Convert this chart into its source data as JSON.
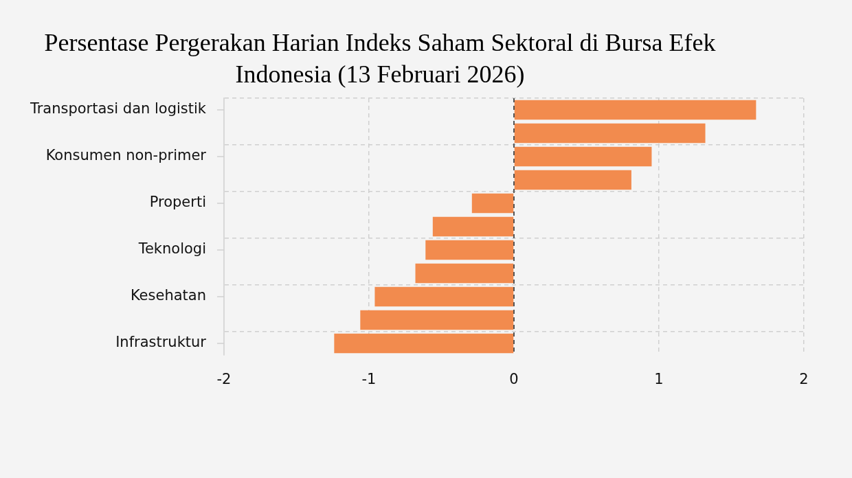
{
  "chart_data": {
    "type": "bar",
    "orientation": "horizontal",
    "title": "Persentase Pergerakan Harian Indeks Saham Sektoral di Bursa Efek Indonesia (13 Februari 2026)",
    "categories": [
      "Transportasi dan logistik",
      null,
      "Konsumen non-primer",
      null,
      "Properti",
      null,
      "Teknologi",
      null,
      "Kesehatan",
      null,
      "Infrastruktur"
    ],
    "values": [
      1.67,
      1.32,
      0.95,
      0.81,
      -0.29,
      -0.56,
      -0.61,
      -0.68,
      -0.96,
      -1.06,
      -1.24
    ],
    "color": "#f28b4e",
    "xlim": [
      -2,
      2
    ],
    "xticks": [
      -2,
      -1,
      0,
      1,
      2
    ],
    "grid": true,
    "ref_lines": [
      {
        "axis": "x",
        "value": 0,
        "color": "#555555",
        "line_style": "dashed"
      }
    ]
  }
}
